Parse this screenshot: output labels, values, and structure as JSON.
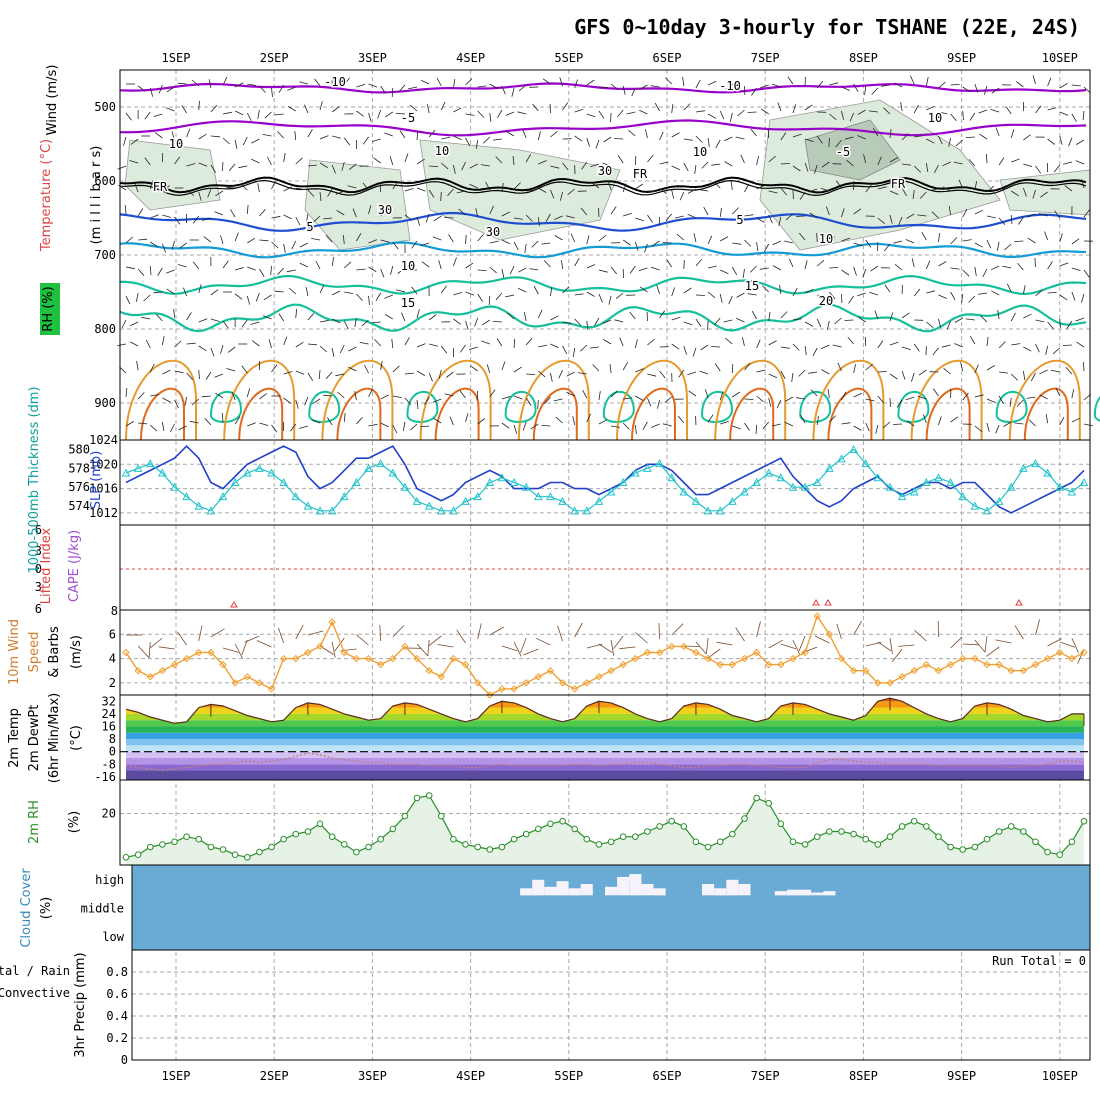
{
  "title": "GFS 0~10day 3-hourly for TSHANE (22E, 24S)",
  "days": [
    "1SEP",
    "2SEP",
    "3SEP",
    "4SEP",
    "5SEP",
    "6SEP",
    "7SEP",
    "8SEP",
    "9SEP",
    "10SEP"
  ],
  "colors": {
    "purple": "#9900cc",
    "blue": "#1f4fd1",
    "lightblue": "#139bd6",
    "teal": "#15bf9c",
    "orange": "#e69a2e",
    "darkorange": "#e06a1b",
    "magenta": "#e0147a",
    "cyan": "#22c3cc",
    "slp": "#2041c8",
    "rh_fill": "#e6f2e6",
    "rh_line": "#2a8f2a",
    "cloud": "#6aabd6",
    "wind": "#f0a030",
    "gray": "#999999"
  },
  "panels": {
    "upper": {
      "label_wind": "Wind (m/s)",
      "label_temp": "Temperature (°C)",
      "label_rh": "RH (%)",
      "label_units": "(m i l l i b a r s)",
      "pressure_ticks": [
        500,
        600,
        700,
        800,
        900
      ],
      "contour_labels": [
        "-10",
        "-10",
        "-5",
        "-5",
        "FR",
        "FR",
        "FR",
        "5",
        "5",
        "10",
        "10",
        "15",
        "15",
        "20",
        "10",
        "10",
        "10",
        "30",
        "30",
        "30",
        "10"
      ],
      "temperature_levels": [
        -10,
        -5,
        0,
        5,
        10,
        15,
        20
      ]
    },
    "thickness": {
      "label_left": "1000-500mb Thickness (dm)",
      "label_right": "SLP (mb)",
      "left_ticks": [
        574,
        576,
        578,
        580
      ],
      "right_ticks": [
        1012,
        1016,
        1020,
        1024
      ]
    },
    "stability": {
      "label_left": "Lifted Index",
      "label_right": "CAPE (J/kg)",
      "li_ticks": [
        "6",
        "3",
        "0",
        "3",
        "6"
      ],
      "cape_ticks": [
        "8"
      ]
    },
    "wind10m": {
      "label_1": "10m Wind",
      "label_2": "Speed",
      "label_3": "& Barbs",
      "units": "(m/s)",
      "ticks": [
        2,
        4,
        6
      ]
    },
    "temp2m": {
      "label_1": "2m Temp",
      "label_2": "2m DewPt",
      "label_3": "(6hr Min/Max)",
      "units": "(°C)",
      "ticks": [
        32,
        24,
        16,
        8,
        0,
        -8,
        -16
      ]
    },
    "rh2m": {
      "label": "2m RH",
      "units": "(%)",
      "ticks": [
        20
      ]
    },
    "cloud": {
      "label": "Cloud Cover",
      "units": "(%)",
      "levels": [
        "high",
        "middle",
        "low"
      ]
    },
    "precip": {
      "label_left_1": "Total / Rain",
      "label_left_2": "Convective",
      "label_right": "3hr Precip (mm)",
      "run_total": "Run Total = 0",
      "ticks": [
        "0",
        "0.2",
        "0.4",
        "0.6",
        "0.8"
      ]
    }
  },
  "chart_data": {
    "type": "line",
    "x_label_days": [
      "1SEP",
      "2SEP",
      "3SEP",
      "4SEP",
      "5SEP",
      "6SEP",
      "7SEP",
      "8SEP",
      "9SEP",
      "10SEP"
    ],
    "steps_per_day": 8,
    "n_steps": 80,
    "series": [
      {
        "name": "SLP (mb)",
        "axis": "right",
        "ylim": [
          1010,
          1024
        ],
        "values": [
          1017,
          1018,
          1019,
          1020,
          1021,
          1023,
          1021,
          1017,
          1016,
          1018,
          1020,
          1021,
          1022,
          1023,
          1022,
          1018,
          1016,
          1017,
          1019,
          1021,
          1021,
          1022,
          1023,
          1020,
          1016,
          1015,
          1014,
          1015,
          1017,
          1018,
          1019,
          1018,
          1016,
          1016,
          1016,
          1017,
          1017,
          1016,
          1016,
          1015,
          1016,
          1017,
          1019,
          1020,
          1020,
          1019,
          1017,
          1015,
          1015,
          1016,
          1017,
          1018,
          1019,
          1020,
          1021,
          1018,
          1016,
          1014,
          1013,
          1014,
          1016,
          1017,
          1018,
          1016,
          1015,
          1016,
          1017,
          1017,
          1016,
          1017,
          1017,
          1015,
          1013,
          1012,
          1013,
          1014,
          1015,
          1016,
          1017,
          1019
        ]
      },
      {
        "name": "Thickness (dm)",
        "axis": "left",
        "ylim": [
          572,
          581
        ],
        "values": [
          577.5,
          578,
          578.5,
          577.5,
          576,
          575,
          574,
          573.5,
          575,
          576.5,
          577.5,
          578,
          577.5,
          576.5,
          575,
          574,
          573.5,
          573.5,
          575,
          576.5,
          578,
          578.5,
          577.5,
          576,
          574.5,
          574,
          573.5,
          573.5,
          574.5,
          575,
          576.5,
          577,
          576.5,
          576,
          575,
          575,
          574.5,
          573.5,
          573.5,
          574.5,
          575.5,
          576.5,
          577.5,
          578,
          578.5,
          577,
          575.5,
          574.5,
          573.5,
          573.5,
          574.5,
          575.5,
          576.5,
          577.5,
          577,
          576,
          576,
          576.5,
          578,
          579,
          580,
          578.5,
          577,
          576,
          575,
          575.5,
          576.5,
          577,
          576.5,
          575,
          574,
          573.5,
          574.5,
          576,
          578,
          578.5,
          577.5,
          576,
          575.5,
          576.5
        ]
      },
      {
        "name": "10m Wind Speed (m/s)",
        "ylim": [
          1,
          8
        ],
        "values": [
          4.5,
          3,
          2.5,
          3,
          3.5,
          4,
          4.5,
          4.5,
          3.5,
          2,
          2.5,
          2,
          1.5,
          4,
          4,
          4.5,
          5,
          7,
          4.5,
          4,
          4,
          3.5,
          4,
          5,
          4,
          3,
          2.5,
          4,
          3.5,
          2,
          1,
          1.5,
          1.5,
          2,
          2.5,
          3,
          2,
          1.5,
          2,
          2.5,
          3,
          3.5,
          4,
          4.5,
          4.5,
          5,
          5,
          4.5,
          4,
          3.5,
          3.5,
          4,
          4.5,
          3.5,
          3.5,
          4,
          4.5,
          7.5,
          6,
          4,
          3,
          3,
          2,
          2,
          2.5,
          3,
          3.5,
          3,
          3.5,
          4,
          4,
          3.5,
          3.5,
          3,
          3,
          3.5,
          4,
          4.5,
          4,
          4.5
        ]
      },
      {
        "name": "2m RH (%)",
        "ylim": [
          0,
          33
        ],
        "values": [
          3,
          4,
          7,
          8,
          9,
          11,
          10,
          7,
          6,
          4,
          3,
          5,
          7,
          10,
          12,
          13,
          16,
          11,
          8,
          5,
          7,
          10,
          14,
          19,
          26,
          27,
          19,
          10,
          8,
          7,
          6,
          7,
          10,
          12,
          14,
          16,
          17,
          14,
          10,
          8,
          9,
          11,
          11,
          13,
          15,
          17,
          15,
          9,
          7,
          9,
          12,
          18,
          26,
          24,
          16,
          9,
          8,
          11,
          13,
          13,
          12,
          10,
          8,
          11,
          15,
          17,
          15,
          11,
          7,
          6,
          7,
          10,
          13,
          15,
          13,
          9,
          5,
          4,
          9,
          17
        ]
      },
      {
        "name": "2m Temp (°C)",
        "ylim": [
          -18,
          36
        ],
        "values": [
          27,
          25,
          22,
          20,
          18,
          19,
          28,
          30,
          29,
          26,
          23,
          21,
          19,
          20,
          28,
          31,
          30,
          27,
          24,
          22,
          20,
          21,
          29,
          31,
          30,
          27,
          24,
          21,
          19,
          21,
          29,
          32,
          31,
          28,
          24,
          21,
          19,
          21,
          29,
          32,
          31,
          28,
          24,
          21,
          19,
          21,
          29,
          31,
          30,
          27,
          23,
          21,
          19,
          21,
          29,
          31,
          30,
          27,
          24,
          22,
          20,
          23,
          32,
          34,
          32,
          28,
          24,
          21,
          19,
          21,
          29,
          31,
          30,
          27,
          23,
          21,
          19,
          20,
          24,
          24
        ]
      },
      {
        "name": "2m DewPt (°C)",
        "ylim": [
          -18,
          36
        ],
        "values": [
          -9,
          -10,
          -11,
          -12,
          -11,
          -10,
          -9,
          -8,
          -8,
          -7,
          -6,
          -7,
          -6,
          -5,
          -3,
          -1,
          -2,
          -4,
          -5,
          -6,
          -7,
          -7,
          -8,
          -8,
          -8,
          -9,
          -9,
          -9,
          -10,
          -10,
          -9,
          -8,
          -9,
          -9,
          -9,
          -9,
          -9,
          -8,
          -8,
          -9,
          -8,
          -8,
          -7,
          -7,
          -8,
          -9,
          -10,
          -10,
          -9,
          -9,
          -8,
          -8,
          -9,
          -9,
          -10,
          -10,
          -10,
          -7,
          -5,
          -5,
          -6,
          -7,
          -7,
          -8,
          -8,
          -8,
          -8,
          -9,
          -9,
          -9,
          -9,
          -9,
          -9,
          -10,
          -9,
          -9,
          -8,
          -6,
          -6,
          -7
        ]
      },
      {
        "name": "Cloud Cover high (%)",
        "ylim": [
          0,
          100
        ],
        "values": [
          0,
          0,
          0,
          0,
          0,
          0,
          0,
          0,
          0,
          0,
          0,
          0,
          0,
          0,
          0,
          0,
          0,
          0,
          0,
          0,
          0,
          0,
          0,
          0,
          0,
          0,
          0,
          0,
          0,
          0,
          0,
          0,
          0,
          25,
          55,
          30,
          50,
          25,
          40,
          0,
          30,
          65,
          75,
          40,
          25,
          0,
          0,
          0,
          40,
          25,
          55,
          40,
          0,
          0,
          15,
          20,
          20,
          10,
          15,
          0,
          0,
          0,
          0,
          0,
          0,
          0,
          0,
          0,
          0,
          0,
          0,
          0,
          0,
          0,
          0,
          0,
          0,
          0,
          0,
          0
        ]
      },
      {
        "name": "3hr Precip (mm)",
        "ylim": [
          0,
          1
        ],
        "values": [
          0,
          0,
          0,
          0,
          0,
          0,
          0,
          0,
          0,
          0,
          0,
          0,
          0,
          0,
          0,
          0,
          0,
          0,
          0,
          0,
          0,
          0,
          0,
          0,
          0,
          0,
          0,
          0,
          0,
          0,
          0,
          0,
          0,
          0,
          0,
          0,
          0,
          0,
          0,
          0,
          0,
          0,
          0,
          0,
          0,
          0,
          0,
          0,
          0,
          0,
          0,
          0,
          0,
          0,
          0,
          0,
          0,
          0,
          0,
          0,
          0,
          0,
          0,
          0,
          0,
          0,
          0,
          0,
          0,
          0,
          0,
          0,
          0,
          0,
          0,
          0,
          0,
          0,
          0,
          0
        ]
      }
    ]
  }
}
